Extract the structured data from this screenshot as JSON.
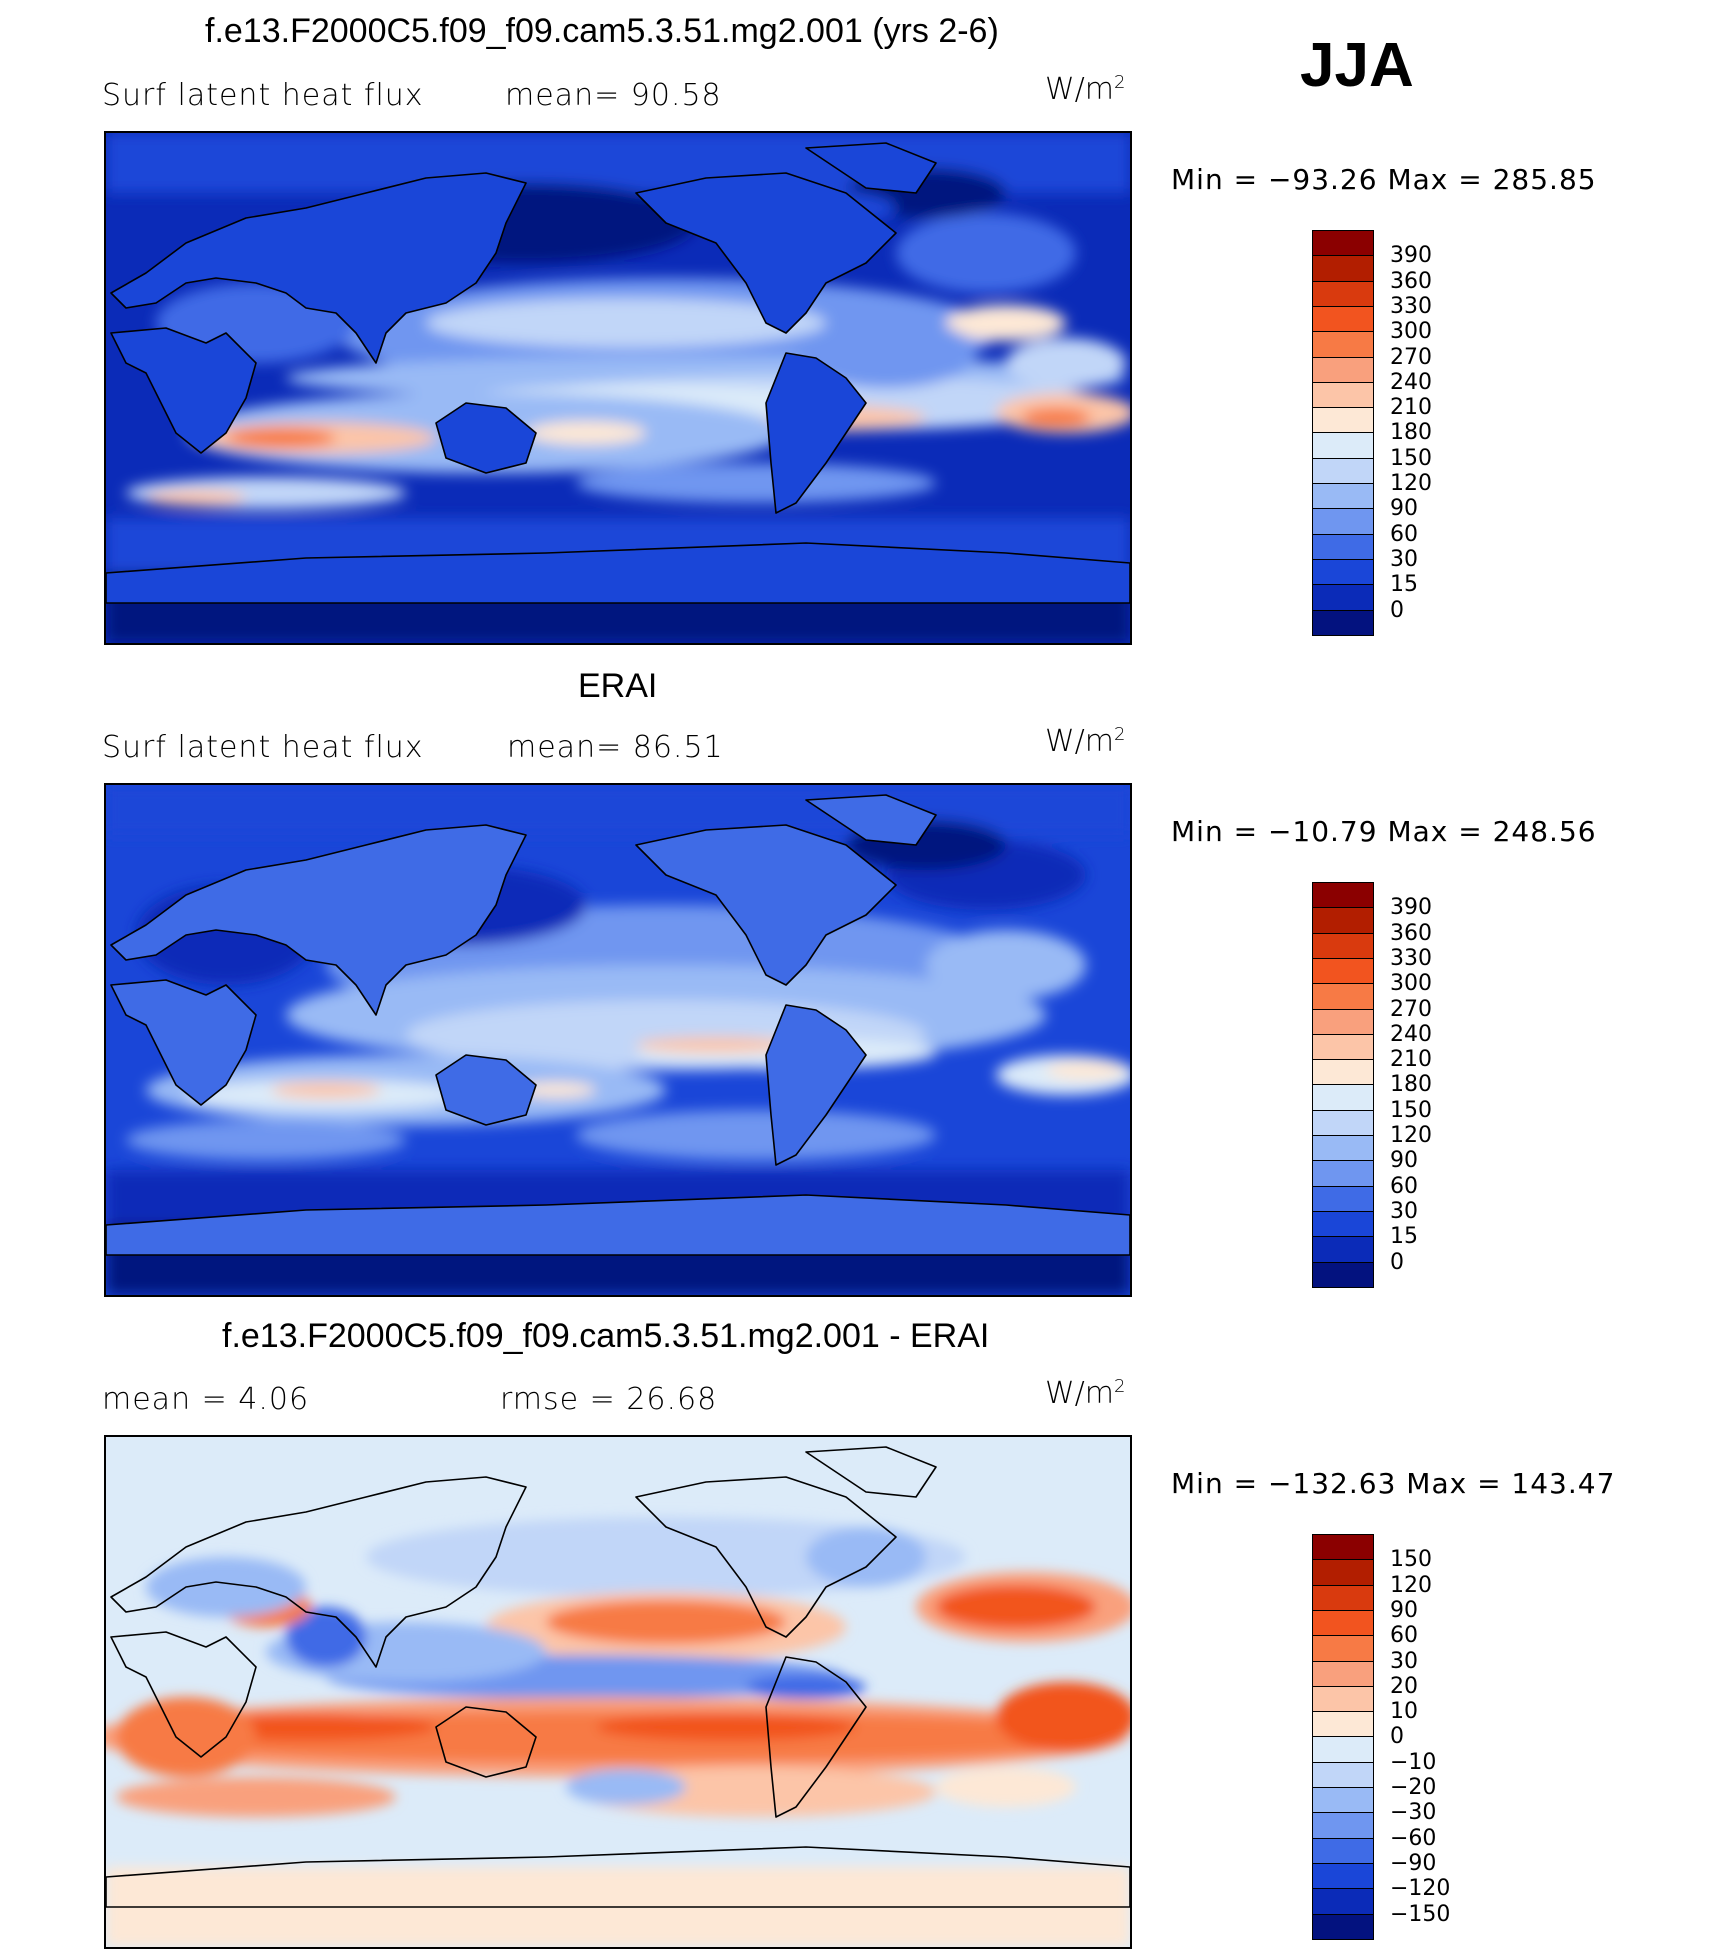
{
  "season": "JJA",
  "panels": [
    {
      "title": "f.e13.F2000C5.f09_f09.cam5.3.51.mg2.001 (yrs 2-6)",
      "left_label": "Surf  latent  heat  flux",
      "mid_label": "mean=   90.58",
      "units_base": "W/m",
      "units_exp": "2",
      "minmax": "Min  =  −93.26  Max  =  285.85",
      "kind": "model"
    },
    {
      "title": "ERAI",
      "left_label": "Surf  latent  heat  flux",
      "mid_label": "mean=   86.51",
      "units_base": "W/m",
      "units_exp": "2",
      "minmax": "Min  =  −10.79  Max  =  248.56",
      "kind": "obs"
    },
    {
      "title": "f.e13.F2000C5.f09_f09.cam5.3.51.mg2.001 - ERAI",
      "left_label": "mean  =      4.06",
      "mid_label": "rmse  =     26.68",
      "units_base": "W/m",
      "units_exp": "2",
      "minmax": "Min  =  −132.63  Max  =  143.47",
      "kind": "diff"
    }
  ],
  "colorbars": {
    "abs": {
      "labels": [
        "390",
        "360",
        "330",
        "300",
        "270",
        "240",
        "210",
        "180",
        "150",
        "120",
        "90",
        "60",
        "30",
        "15",
        "0"
      ],
      "colors": [
        "#8b0000",
        "#b21e00",
        "#d93a0e",
        "#f2541f",
        "#f77a45",
        "#f9a07d",
        "#fcc5a8",
        "#fde8d6",
        "#dcebf9",
        "#c1d6f8",
        "#99baf5",
        "#6f96f0",
        "#3f6be6",
        "#1a46d8",
        "#0b2bb8",
        "#03127f"
      ]
    },
    "diff": {
      "labels": [
        "150",
        "120",
        "90",
        "60",
        "30",
        "20",
        "10",
        "0",
        "−10",
        "−20",
        "−30",
        "−60",
        "−90",
        "−120",
        "−150"
      ],
      "colors": [
        "#8b0000",
        "#b21e00",
        "#d93a0e",
        "#f2541f",
        "#f77a45",
        "#f9a07d",
        "#fcc5a8",
        "#fde8d6",
        "#dcebf9",
        "#c1d6f8",
        "#99baf5",
        "#6f96f0",
        "#3f6be6",
        "#1a46d8",
        "#0b2bb8",
        "#03127f"
      ]
    }
  }
}
